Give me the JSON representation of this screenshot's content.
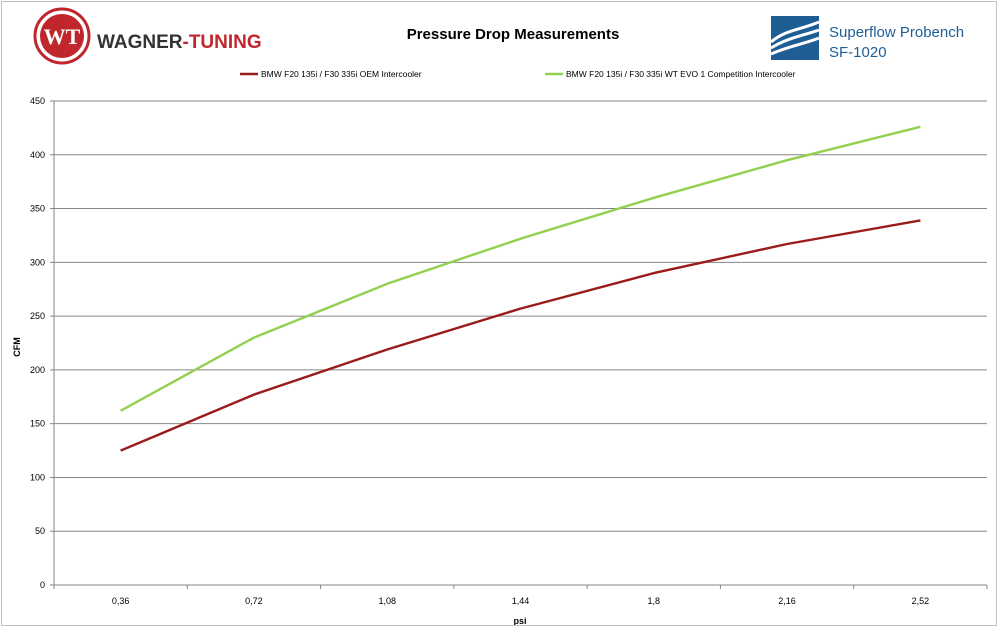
{
  "header": {
    "brand_name_a": "WAGNER",
    "brand_name_b": "-TUNING",
    "logo_mark": "WT",
    "right_brand_line1": "Superflow Probench",
    "right_brand_line2": "SF-1020"
  },
  "colors": {
    "oem": "#9b1b1b",
    "evo": "#92d050",
    "brand_red": "#c0272d",
    "brand_blue": "#1f5e95",
    "grid": "#868686"
  },
  "chart_data": {
    "type": "line",
    "title": "Pressure Drop Measurements",
    "xlabel": "psi",
    "ylabel": "CFM",
    "categories": [
      "0,36",
      "0,72",
      "1,08",
      "1,44",
      "1,8",
      "2,16",
      "2,52"
    ],
    "ylim": [
      0,
      450
    ],
    "yticks": [
      0,
      50,
      100,
      150,
      200,
      250,
      300,
      350,
      400,
      450
    ],
    "grid": true,
    "legend_position": "top",
    "series": [
      {
        "name": "BMW F20 135i / F30 335i OEM Intercooler",
        "values": [
          125,
          177,
          219,
          257,
          290,
          317,
          339
        ],
        "color": "#9b1b1b"
      },
      {
        "name": "BMW F20 135i / F30 335i WT EVO 1 Competition Intercooler",
        "values": [
          162,
          230,
          280,
          322,
          360,
          395,
          426
        ],
        "color": "#92d050"
      }
    ]
  }
}
